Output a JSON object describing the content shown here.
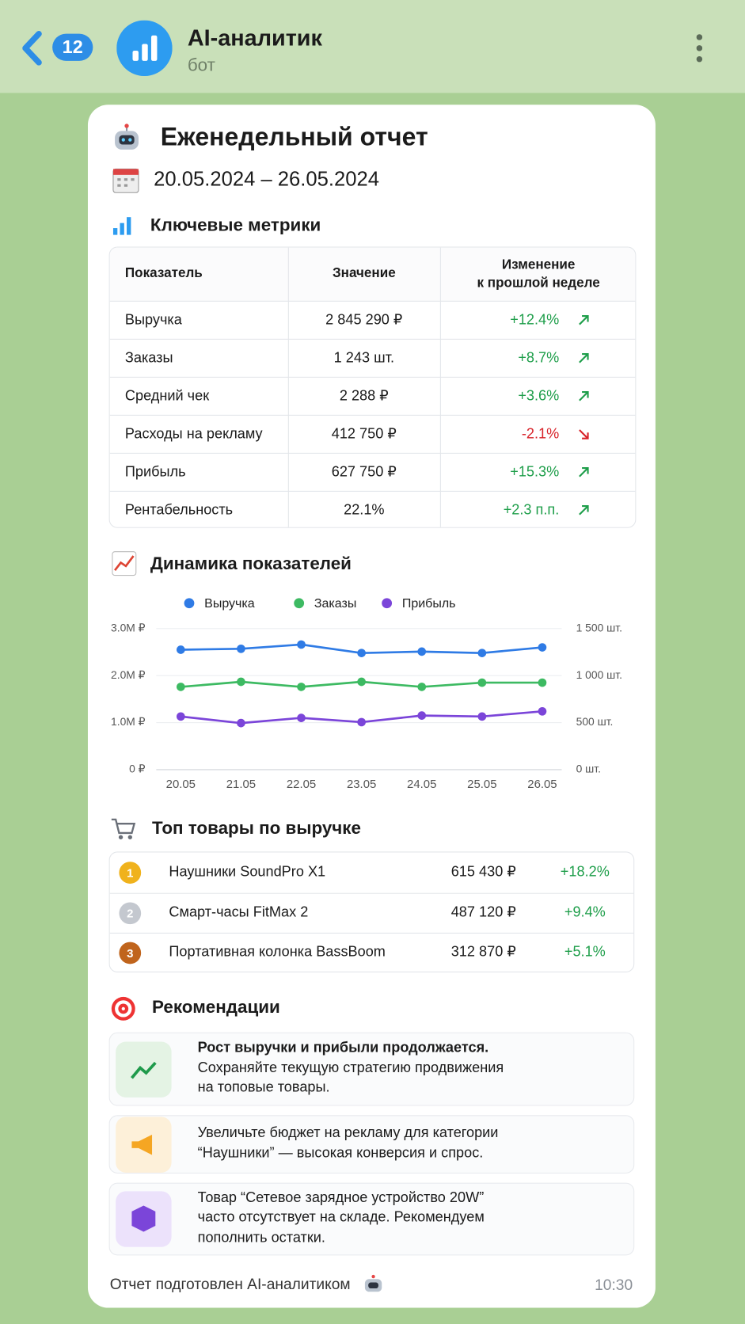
{
  "header": {
    "back_count": "12",
    "title": "AI-аналитик",
    "subtitle": "бот"
  },
  "report": {
    "title": "Еженедельный отчет",
    "period": "20.05.2024 – 26.05.2024",
    "metrics_title": "Ключевые метрики",
    "metrics_table": {
      "headers": [
        "Показатель",
        "Значение",
        [
          "Изменение",
          "к прошлой неделе"
        ]
      ],
      "rows": [
        {
          "name": "Выручка",
          "value": "2 845 290 ₽",
          "change": "+12.4%",
          "trend": "up"
        },
        {
          "name": "Заказы",
          "value": "1 243 шт.",
          "change": "+8.7%",
          "trend": "up"
        },
        {
          "name": "Средний чек",
          "value": "2 288 ₽",
          "change": "+3.6%",
          "trend": "up"
        },
        {
          "name": "Расходы на рекламу",
          "value": "412 750 ₽",
          "change": "-2.1%",
          "trend": "down"
        },
        {
          "name": "Прибыль",
          "value": "627 750 ₽",
          "change": "+15.3%",
          "trend": "up"
        },
        {
          "name": "Рентабельность",
          "value": "22.1%",
          "change": "+2.3 п.п.",
          "trend": "up"
        }
      ]
    },
    "dynamics_title": "Динамика показателей",
    "top_title": "Топ товары по выручке",
    "top_products": [
      {
        "rank": "1",
        "name": "Наушники SoundPro X1",
        "revenue": "615 430 ₽",
        "change": "+18.2%",
        "color": "#f0b21c"
      },
      {
        "rank": "2",
        "name": "Смарт-часы FitMax 2",
        "revenue": "487 120 ₽",
        "change": "+9.4%",
        "color": "#c4c8cf"
      },
      {
        "rank": "3",
        "name": "Портативная колонка BassBoom",
        "revenue": "312 870 ₽",
        "change": "+5.1%",
        "color": "#c0641c"
      }
    ],
    "recommendations_title": "Рекомендации",
    "recommendations": [
      {
        "lines": [
          "Рост выручки и прибыли продолжается.",
          "Сохраняйте текущую стратегию продвижения",
          "на топовые товары."
        ],
        "bold_first": true,
        "icon_bg": "#e4f3e4"
      },
      {
        "lines": [
          "Увеличьте бюджет на рекламу для категории",
          "“Наушники” — высокая конверсия и спрос."
        ],
        "bold_first": false,
        "icon_bg": "#fdf0d9"
      },
      {
        "lines": [
          "Товар “Сетевое зарядное устройство 20W”",
          "часто отсутствует на складе. Рекомендуем",
          "пополнить остатки."
        ],
        "bold_first": false,
        "icon_bg": "#ece2fb"
      }
    ],
    "footer": "Отчет подготовлен AI-аналитиком",
    "time": "10:30"
  },
  "chart_data": {
    "type": "line",
    "categories": [
      "20.05",
      "21.05",
      "22.05",
      "23.05",
      "24.05",
      "25.05",
      "26.05"
    ],
    "series": [
      {
        "name": "Выручка",
        "color": "#2f7be5",
        "values": [
          2550000,
          2570000,
          2660000,
          2480000,
          2510000,
          2480000,
          2600000
        ]
      },
      {
        "name": "Заказы",
        "color": "#3dba62",
        "axis": "y2",
        "values": [
          880,
          934,
          880,
          934,
          880,
          925,
          925
        ]
      },
      {
        "name": "Прибыль",
        "color": "#7b45d9",
        "values": [
          1130000,
          990000,
          1100000,
          1010000,
          1150000,
          1130000,
          1240000
        ]
      }
    ],
    "ylim": [
      0,
      3000000
    ],
    "yticks": [
      {
        "value": 0,
        "label": "0 ₽"
      },
      {
        "value": 1000000,
        "label": "1.0M ₽"
      },
      {
        "value": 2000000,
        "label": "2.0M ₽"
      },
      {
        "value": 3000000,
        "label": "3.0M ₽"
      }
    ],
    "y2lim": [
      0,
      1500
    ],
    "y2ticks": [
      {
        "value": 0,
        "label": "0 шт."
      },
      {
        "value": 500,
        "label": "500 шт."
      },
      {
        "value": 1000,
        "label": "1 000 шт."
      },
      {
        "value": 1500,
        "label": "1 500 шт."
      }
    ],
    "grid": true,
    "legend": "top"
  }
}
